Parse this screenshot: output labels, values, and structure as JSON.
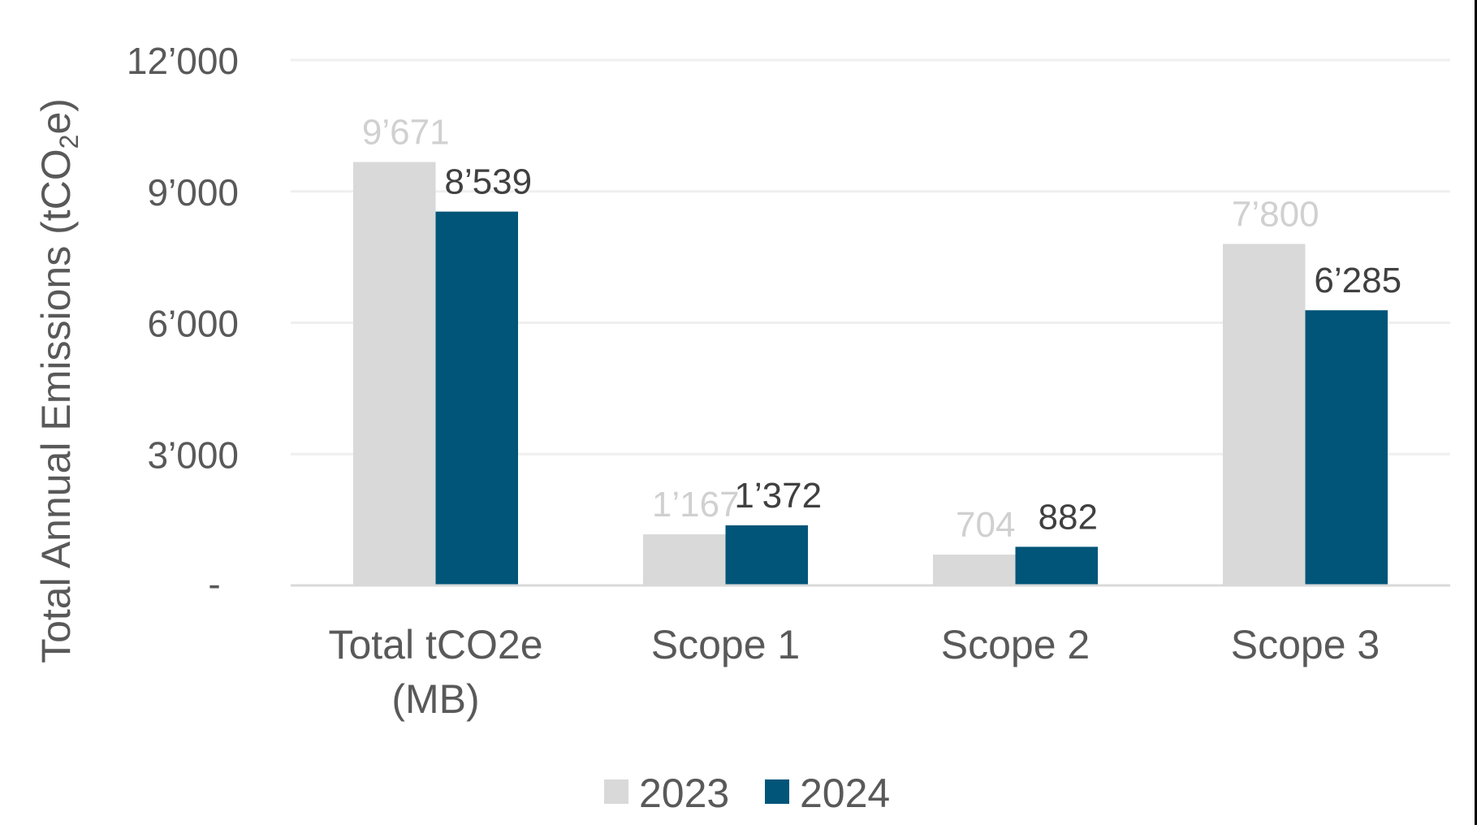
{
  "chart_data": {
    "type": "bar",
    "title": "",
    "xlabel": "",
    "ylabel": "Total Annual Emissions (tCO2e)",
    "ylabel_parts": {
      "main": "Total Annual Emissions (tCO",
      "sub": "2",
      "tail": "e)"
    },
    "ylim": [
      0,
      12000
    ],
    "yticks": [
      0,
      3000,
      6000,
      9000,
      12000
    ],
    "ytick_labels": [
      "-",
      "3’000",
      "6’000",
      "9’000",
      "12’000"
    ],
    "grid": true,
    "legend_position": "bottom",
    "categories": [
      "Total tCO2e (MB)",
      "Scope 1",
      "Scope 2",
      "Scope 3"
    ],
    "category_lines": [
      [
        "Total tCO2e",
        "(MB)"
      ],
      [
        "Scope 1"
      ],
      [
        "Scope 2"
      ],
      [
        "Scope 3"
      ]
    ],
    "series": [
      {
        "name": "2023",
        "color": "#d9d9d9",
        "label_color": "#d0d0d0",
        "values": [
          9671,
          1167,
          704,
          7800
        ],
        "value_labels": [
          "9’671",
          "1’167",
          "704",
          "7’800"
        ]
      },
      {
        "name": "2024",
        "color": "#005579",
        "label_color": "#404040",
        "values": [
          8539,
          1372,
          882,
          6285
        ],
        "value_labels": [
          "8’539",
          "1’372",
          "882",
          "6’285"
        ]
      }
    ]
  },
  "colors": {
    "axis_text": "#595959",
    "gridline": "#efefef",
    "baseline": "#d9d9d9",
    "border": "#000000"
  }
}
